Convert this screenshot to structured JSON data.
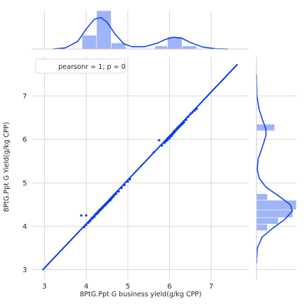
{
  "chart_data": {
    "type": "scatter",
    "kind": "jointplot",
    "xlabel": "8PtG.Ppt G business yield(g/kg CPP)",
    "ylabel": "8PtG.Ppt G Yield(g/kg CPP)",
    "xlim": [
      2.7,
      7.9
    ],
    "ylim": [
      2.78,
      7.9
    ],
    "xticks": [
      3,
      4,
      5,
      6,
      7
    ],
    "yticks": [
      3,
      4,
      5,
      6,
      7
    ],
    "legend": {
      "text": "pearsonr = 1; p = 0",
      "placement": "top-left"
    },
    "regression_line": {
      "x": [
        2.95,
        7.63
      ],
      "y": [
        2.99,
        7.73
      ]
    },
    "points": [
      {
        "x": 3.88,
        "y": 4.25
      },
      {
        "x": 4.0,
        "y": 4.25
      },
      {
        "x": 3.95,
        "y": 3.98
      },
      {
        "x": 4.0,
        "y": 4.03
      },
      {
        "x": 4.05,
        "y": 4.08
      },
      {
        "x": 4.08,
        "y": 4.12
      },
      {
        "x": 4.1,
        "y": 4.12
      },
      {
        "x": 4.12,
        "y": 4.17
      },
      {
        "x": 4.15,
        "y": 4.18
      },
      {
        "x": 4.15,
        "y": 4.2
      },
      {
        "x": 4.18,
        "y": 4.22
      },
      {
        "x": 4.2,
        "y": 4.22
      },
      {
        "x": 4.2,
        "y": 4.25
      },
      {
        "x": 4.22,
        "y": 4.27
      },
      {
        "x": 4.25,
        "y": 4.28
      },
      {
        "x": 4.25,
        "y": 4.3
      },
      {
        "x": 4.27,
        "y": 4.3
      },
      {
        "x": 4.28,
        "y": 4.33
      },
      {
        "x": 4.3,
        "y": 4.33
      },
      {
        "x": 4.3,
        "y": 4.35
      },
      {
        "x": 4.32,
        "y": 4.36
      },
      {
        "x": 4.33,
        "y": 4.38
      },
      {
        "x": 4.35,
        "y": 4.38
      },
      {
        "x": 4.35,
        "y": 4.4
      },
      {
        "x": 4.37,
        "y": 4.41
      },
      {
        "x": 4.38,
        "y": 4.42
      },
      {
        "x": 4.4,
        "y": 4.43
      },
      {
        "x": 4.4,
        "y": 4.45
      },
      {
        "x": 4.42,
        "y": 4.46
      },
      {
        "x": 4.43,
        "y": 4.47
      },
      {
        "x": 4.45,
        "y": 4.48
      },
      {
        "x": 4.47,
        "y": 4.5
      },
      {
        "x": 4.5,
        "y": 4.53
      },
      {
        "x": 4.52,
        "y": 4.55
      },
      {
        "x": 4.55,
        "y": 4.58
      },
      {
        "x": 4.58,
        "y": 4.6
      },
      {
        "x": 4.6,
        "y": 4.63
      },
      {
        "x": 4.62,
        "y": 4.66
      },
      {
        "x": 4.65,
        "y": 4.68
      },
      {
        "x": 4.68,
        "y": 4.72
      },
      {
        "x": 4.72,
        "y": 4.75
      },
      {
        "x": 4.78,
        "y": 4.8
      },
      {
        "x": 4.85,
        "y": 4.88
      },
      {
        "x": 4.92,
        "y": 4.95
      },
      {
        "x": 5.0,
        "y": 5.03
      },
      {
        "x": 5.05,
        "y": 5.08
      },
      {
        "x": 5.62,
        "y": 5.7
      },
      {
        "x": 5.75,
        "y": 5.98
      },
      {
        "x": 5.82,
        "y": 5.86
      },
      {
        "x": 5.88,
        "y": 5.92
      },
      {
        "x": 5.9,
        "y": 5.95
      },
      {
        "x": 5.92,
        "y": 5.97
      },
      {
        "x": 5.95,
        "y": 5.98
      },
      {
        "x": 5.95,
        "y": 6.02
      },
      {
        "x": 5.97,
        "y": 6.03
      },
      {
        "x": 6.0,
        "y": 6.02
      },
      {
        "x": 6.0,
        "y": 6.05
      },
      {
        "x": 6.02,
        "y": 6.07
      },
      {
        "x": 6.03,
        "y": 6.08
      },
      {
        "x": 6.05,
        "y": 6.08
      },
      {
        "x": 6.05,
        "y": 6.1
      },
      {
        "x": 6.07,
        "y": 6.12
      },
      {
        "x": 6.08,
        "y": 6.13
      },
      {
        "x": 6.1,
        "y": 6.15
      },
      {
        "x": 6.1,
        "y": 6.18
      },
      {
        "x": 6.12,
        "y": 6.17
      },
      {
        "x": 6.13,
        "y": 6.2
      },
      {
        "x": 6.15,
        "y": 6.2
      },
      {
        "x": 6.15,
        "y": 6.22
      },
      {
        "x": 6.17,
        "y": 6.23
      },
      {
        "x": 6.18,
        "y": 6.25
      },
      {
        "x": 6.2,
        "y": 6.25
      },
      {
        "x": 6.2,
        "y": 6.28
      },
      {
        "x": 6.22,
        "y": 6.28
      },
      {
        "x": 6.23,
        "y": 6.3
      },
      {
        "x": 6.25,
        "y": 6.3
      },
      {
        "x": 6.27,
        "y": 6.33
      },
      {
        "x": 6.3,
        "y": 6.35
      },
      {
        "x": 6.32,
        "y": 6.37
      },
      {
        "x": 6.35,
        "y": 6.4
      },
      {
        "x": 6.4,
        "y": 6.45
      },
      {
        "x": 6.45,
        "y": 6.52
      },
      {
        "x": 6.5,
        "y": 6.58
      },
      {
        "x": 6.55,
        "y": 6.62
      },
      {
        "x": 6.6,
        "y": 6.66
      },
      {
        "x": 6.65,
        "y": 6.7
      }
    ],
    "x_marginal": {
      "histogram": [
        {
          "start": 3.9,
          "end": 4.25,
          "count": 9
        },
        {
          "start": 4.25,
          "end": 4.6,
          "count": 25
        },
        {
          "start": 4.6,
          "end": 4.95,
          "count": 4
        },
        {
          "start": 4.95,
          "end": 5.3,
          "count": 0
        },
        {
          "start": 5.3,
          "end": 5.65,
          "count": 0
        },
        {
          "start": 5.65,
          "end": 5.95,
          "count": 2
        },
        {
          "start": 5.95,
          "end": 6.3,
          "count": 8
        },
        {
          "start": 6.3,
          "end": 6.65,
          "count": 2
        }
      ],
      "kde": [
        {
          "x": 3.2,
          "y": 0.0
        },
        {
          "x": 3.5,
          "y": 0.03
        },
        {
          "x": 3.8,
          "y": 0.2
        },
        {
          "x": 4.0,
          "y": 0.52
        },
        {
          "x": 4.2,
          "y": 0.78
        },
        {
          "x": 4.35,
          "y": 0.82
        },
        {
          "x": 4.5,
          "y": 0.7
        },
        {
          "x": 4.7,
          "y": 0.38
        },
        {
          "x": 4.9,
          "y": 0.14
        },
        {
          "x": 5.1,
          "y": 0.06
        },
        {
          "x": 5.4,
          "y": 0.06
        },
        {
          "x": 5.7,
          "y": 0.15
        },
        {
          "x": 5.9,
          "y": 0.25
        },
        {
          "x": 6.1,
          "y": 0.31
        },
        {
          "x": 6.3,
          "y": 0.28
        },
        {
          "x": 6.5,
          "y": 0.17
        },
        {
          "x": 6.8,
          "y": 0.05
        },
        {
          "x": 7.1,
          "y": 0.01
        },
        {
          "x": 7.4,
          "y": 0.0
        }
      ]
    },
    "y_marginal": {
      "histogram": [
        {
          "start": 3.9,
          "end": 4.05,
          "count": 3
        },
        {
          "start": 4.05,
          "end": 4.2,
          "count": 6
        },
        {
          "start": 4.2,
          "end": 4.38,
          "count": 10
        },
        {
          "start": 4.38,
          "end": 4.6,
          "count": 11
        },
        {
          "start": 4.6,
          "end": 4.75,
          "count": 3
        },
        {
          "start": 4.75,
          "end": 4.9,
          "count": 0
        },
        {
          "start": 4.9,
          "end": 5.05,
          "count": 0
        },
        {
          "start": 5.05,
          "end": 5.4,
          "count": 0
        },
        {
          "start": 5.4,
          "end": 5.9,
          "count": 0
        },
        {
          "start": 5.9,
          "end": 6.2,
          "count": 0
        },
        {
          "start": 6.2,
          "end": 6.35,
          "count": 5
        },
        {
          "start": 6.35,
          "end": 6.5,
          "count": 0
        }
      ],
      "kde": [
        {
          "y": 3.15,
          "x": 0.0
        },
        {
          "y": 3.5,
          "x": 0.02
        },
        {
          "y": 3.75,
          "x": 0.14
        },
        {
          "y": 3.95,
          "x": 0.4
        },
        {
          "y": 4.15,
          "x": 0.7
        },
        {
          "y": 4.35,
          "x": 0.9
        },
        {
          "y": 4.5,
          "x": 0.85
        },
        {
          "y": 4.7,
          "x": 0.55
        },
        {
          "y": 4.9,
          "x": 0.24
        },
        {
          "y": 5.1,
          "x": 0.07
        },
        {
          "y": 5.3,
          "x": 0.02
        },
        {
          "y": 5.55,
          "x": 0.04
        },
        {
          "y": 5.75,
          "x": 0.12
        },
        {
          "y": 5.95,
          "x": 0.19
        },
        {
          "y": 6.1,
          "x": 0.24
        },
        {
          "y": 6.25,
          "x": 0.23
        },
        {
          "y": 6.45,
          "x": 0.15
        },
        {
          "y": 6.7,
          "x": 0.06
        },
        {
          "y": 7.0,
          "x": 0.01
        },
        {
          "y": 7.5,
          "x": 0.0
        }
      ]
    },
    "colors": {
      "series": "#0a3cf0",
      "histogram_fill": "#9fb5f7",
      "grid": "#d9d9d9",
      "axes_bg": "#ffffff",
      "spine": "#cccccc",
      "text": "#262626"
    }
  }
}
